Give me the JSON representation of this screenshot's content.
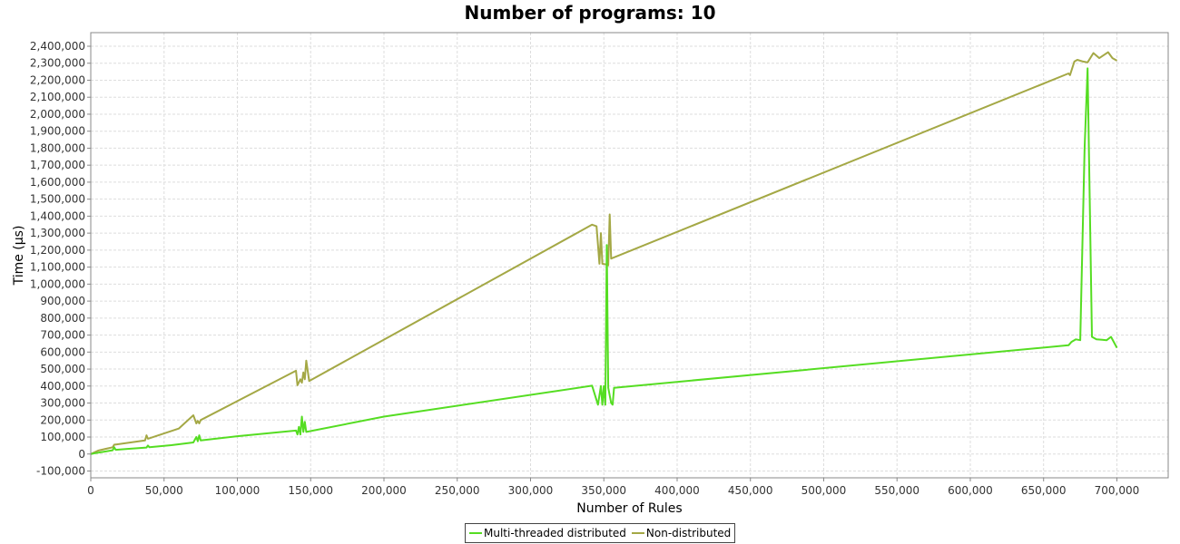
{
  "chart_data": {
    "type": "line",
    "title": "Number of programs: 10",
    "xlabel": "Number of Rules",
    "ylabel": "Time (µs)",
    "xlim": [
      0,
      735000
    ],
    "ylim": [
      -140000,
      2480000
    ],
    "x_ticks": [
      0,
      50000,
      100000,
      150000,
      200000,
      250000,
      300000,
      350000,
      400000,
      450000,
      500000,
      550000,
      600000,
      650000,
      700000
    ],
    "x_tick_labels": [
      "0",
      "50,000",
      "100,000",
      "150,000",
      "200,000",
      "250,000",
      "300,000",
      "350,000",
      "400,000",
      "450,000",
      "500,000",
      "550,000",
      "600,000",
      "650,000",
      "700,000"
    ],
    "y_ticks": [
      -100000,
      0,
      100000,
      200000,
      300000,
      400000,
      500000,
      600000,
      700000,
      800000,
      900000,
      1000000,
      1100000,
      1200000,
      1300000,
      1400000,
      1500000,
      1600000,
      1700000,
      1800000,
      1900000,
      2000000,
      2100000,
      2200000,
      2300000,
      2400000
    ],
    "y_tick_labels": [
      "-100,000",
      "0",
      "100,000",
      "200,000",
      "300,000",
      "400,000",
      "500,000",
      "600,000",
      "700,000",
      "800,000",
      "900,000",
      "1,000,000",
      "1,100,000",
      "1,200,000",
      "1,300,000",
      "1,400,000",
      "1,500,000",
      "1,600,000",
      "1,700,000",
      "1,800,000",
      "1,900,000",
      "2,000,000",
      "2,100,000",
      "2,200,000",
      "2,300,000",
      "2,400,000"
    ],
    "grid": true,
    "legend_position": "bottom-center",
    "series": [
      {
        "name": "Multi-threaded distributed",
        "color": "#55dd22",
        "points": [
          [
            0,
            0
          ],
          [
            3000,
            5000
          ],
          [
            8000,
            12000
          ],
          [
            15000,
            22000
          ],
          [
            16000,
            40000
          ],
          [
            17000,
            25000
          ],
          [
            25000,
            30000
          ],
          [
            38000,
            38000
          ],
          [
            39000,
            50000
          ],
          [
            40000,
            40000
          ],
          [
            55000,
            52000
          ],
          [
            70000,
            68000
          ],
          [
            72000,
            100000
          ],
          [
            73000,
            75000
          ],
          [
            74000,
            110000
          ],
          [
            75000,
            80000
          ],
          [
            100000,
            105000
          ],
          [
            140000,
            138000
          ],
          [
            141000,
            115000
          ],
          [
            142000,
            160000
          ],
          [
            143000,
            115000
          ],
          [
            144000,
            220000
          ],
          [
            145000,
            130000
          ],
          [
            146000,
            190000
          ],
          [
            147000,
            130000
          ],
          [
            200000,
            220000
          ],
          [
            342000,
            402000
          ],
          [
            346000,
            290000
          ],
          [
            348000,
            400000
          ],
          [
            349000,
            290000
          ],
          [
            350000,
            400000
          ],
          [
            351000,
            290000
          ],
          [
            352000,
            1230000
          ],
          [
            353000,
            390000
          ],
          [
            355000,
            300000
          ],
          [
            356000,
            290000
          ],
          [
            357000,
            390000
          ],
          [
            667000,
            640000
          ],
          [
            669000,
            660000
          ],
          [
            672000,
            675000
          ],
          [
            675000,
            670000
          ],
          [
            678000,
            1800000
          ],
          [
            680000,
            2270000
          ],
          [
            683000,
            690000
          ],
          [
            686000,
            675000
          ],
          [
            690000,
            672000
          ],
          [
            693000,
            670000
          ],
          [
            696000,
            690000
          ],
          [
            700000,
            625000
          ]
        ]
      },
      {
        "name": "Non-distributed",
        "color": "#a4a845",
        "points": [
          [
            0,
            0
          ],
          [
            5000,
            20000
          ],
          [
            10000,
            30000
          ],
          [
            15000,
            40000
          ],
          [
            16000,
            55000
          ],
          [
            37000,
            80000
          ],
          [
            38000,
            110000
          ],
          [
            39000,
            90000
          ],
          [
            60000,
            150000
          ],
          [
            70000,
            228000
          ],
          [
            72000,
            180000
          ],
          [
            73000,
            195000
          ],
          [
            74000,
            180000
          ],
          [
            75000,
            200000
          ],
          [
            140000,
            490000
          ],
          [
            141000,
            405000
          ],
          [
            143000,
            440000
          ],
          [
            144000,
            420000
          ],
          [
            145000,
            480000
          ],
          [
            146000,
            440000
          ],
          [
            147000,
            550000
          ],
          [
            149000,
            430000
          ],
          [
            342000,
            1350000
          ],
          [
            345000,
            1340000
          ],
          [
            347000,
            1120000
          ],
          [
            348000,
            1300000
          ],
          [
            349000,
            1120000
          ],
          [
            352000,
            1115000
          ],
          [
            353000,
            1110000
          ],
          [
            354000,
            1410000
          ],
          [
            355000,
            1150000
          ],
          [
            667000,
            2240000
          ],
          [
            668000,
            2230000
          ],
          [
            671000,
            2310000
          ],
          [
            673000,
            2320000
          ],
          [
            677000,
            2310000
          ],
          [
            680000,
            2305000
          ],
          [
            684000,
            2360000
          ],
          [
            688000,
            2330000
          ],
          [
            694000,
            2365000
          ],
          [
            697000,
            2330000
          ],
          [
            700000,
            2315000
          ]
        ]
      }
    ]
  }
}
